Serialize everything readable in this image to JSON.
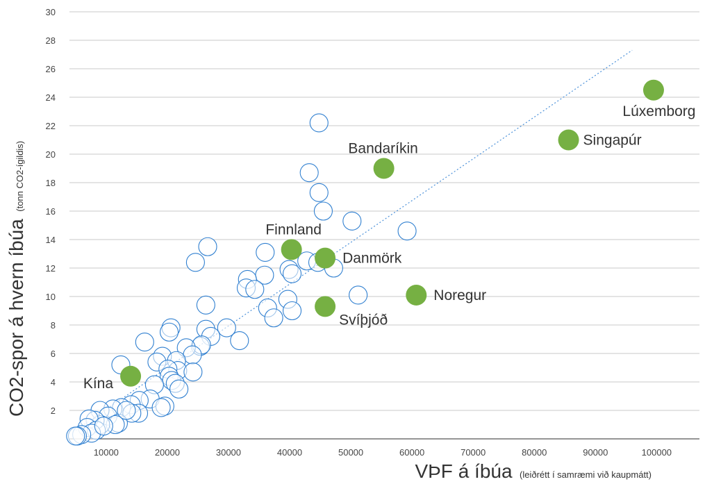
{
  "chart_data": {
    "type": "scatter",
    "title": "",
    "xlabel": "VÞF á íbúa",
    "xlabel_note": "(leiðrétt í samræmi við kaupmátt)",
    "ylabel": "CO2-spor á hvern íbúa",
    "ylabel_note": "(tonn CO2-ígildis)",
    "xlim": [
      4000,
      107000
    ],
    "ylim": [
      0,
      30
    ],
    "x_ticks": [
      "10000",
      "20000",
      "30000",
      "40000",
      "50000",
      "60000",
      "70000",
      "80000",
      "90000",
      "100000"
    ],
    "y_ticks": [
      "2",
      "4",
      "6",
      "8",
      "10",
      "12",
      "14",
      "16",
      "18",
      "20",
      "22",
      "24",
      "26",
      "28",
      "30"
    ],
    "grid": "horizontal",
    "trendline": {
      "style": "dotted",
      "from": [
        5000,
        0.6
      ],
      "to": [
        96000,
        27.3
      ]
    },
    "colors": {
      "open_marker": "#2f7fd0",
      "highlight_marker": "#76b043",
      "trendline": "#4a90d9",
      "grid": "#c8c8c8"
    },
    "highlighted": [
      {
        "label": "Lúxemborg",
        "x": 99500,
        "y": 24.5
      },
      {
        "label": "Singapúr",
        "x": 85600,
        "y": 21.0
      },
      {
        "label": "Bandaríkin",
        "x": 55400,
        "y": 19.0
      },
      {
        "label": "Finnland",
        "x": 40300,
        "y": 13.3
      },
      {
        "label": "Danmörk",
        "x": 45800,
        "y": 12.7
      },
      {
        "label": "Noregur",
        "x": 60700,
        "y": 10.1
      },
      {
        "label": "Svíþjóð",
        "x": 45800,
        "y": 9.3
      },
      {
        "label": "Kína",
        "x": 14000,
        "y": 4.4
      }
    ],
    "points": [
      [
        44800,
        22.2
      ],
      [
        43200,
        18.7
      ],
      [
        44800,
        17.3
      ],
      [
        45500,
        16.0
      ],
      [
        50200,
        15.3
      ],
      [
        59200,
        14.6
      ],
      [
        26600,
        13.5
      ],
      [
        24600,
        12.4
      ],
      [
        36000,
        13.1
      ],
      [
        42800,
        12.5
      ],
      [
        44600,
        12.4
      ],
      [
        47200,
        12.0
      ],
      [
        39900,
        11.9
      ],
      [
        40400,
        11.6
      ],
      [
        35900,
        11.5
      ],
      [
        33100,
        11.2
      ],
      [
        32900,
        10.6
      ],
      [
        34300,
        10.5
      ],
      [
        51200,
        10.1
      ],
      [
        39700,
        9.8
      ],
      [
        36400,
        9.2
      ],
      [
        40400,
        9.0
      ],
      [
        37400,
        8.5
      ],
      [
        26300,
        9.4
      ],
      [
        20600,
        7.8
      ],
      [
        20300,
        7.5
      ],
      [
        26300,
        7.7
      ],
      [
        29700,
        7.8
      ],
      [
        27100,
        7.2
      ],
      [
        31800,
        6.9
      ],
      [
        16300,
        6.8
      ],
      [
        25400,
        6.5
      ],
      [
        25600,
        6.6
      ],
      [
        23100,
        6.4
      ],
      [
        24100,
        5.9
      ],
      [
        19200,
        5.8
      ],
      [
        12400,
        5.2
      ],
      [
        18300,
        5.4
      ],
      [
        21500,
        5.5
      ],
      [
        21700,
        4.8
      ],
      [
        20100,
        4.9
      ],
      [
        24200,
        4.7
      ],
      [
        20300,
        4.4
      ],
      [
        20700,
        4.1
      ],
      [
        21300,
        3.9
      ],
      [
        21900,
        3.5
      ],
      [
        17900,
        3.8
      ],
      [
        17200,
        2.8
      ],
      [
        15400,
        2.7
      ],
      [
        14100,
        2.4
      ],
      [
        12500,
        2.2
      ],
      [
        11100,
        2.1
      ],
      [
        9000,
        2.0
      ],
      [
        10300,
        1.6
      ],
      [
        19600,
        2.3
      ],
      [
        19000,
        2.2
      ],
      [
        15300,
        1.8
      ],
      [
        14200,
        1.8
      ],
      [
        12000,
        1.1
      ],
      [
        11500,
        1.0
      ],
      [
        9100,
        1.0
      ],
      [
        8200,
        1.3
      ],
      [
        7200,
        1.4
      ],
      [
        6900,
        0.8
      ],
      [
        8400,
        0.6
      ],
      [
        7600,
        0.4
      ],
      [
        6000,
        0.3
      ],
      [
        5300,
        0.2
      ],
      [
        5000,
        0.2
      ],
      [
        9600,
        0.9
      ],
      [
        13300,
        2.0
      ]
    ]
  }
}
